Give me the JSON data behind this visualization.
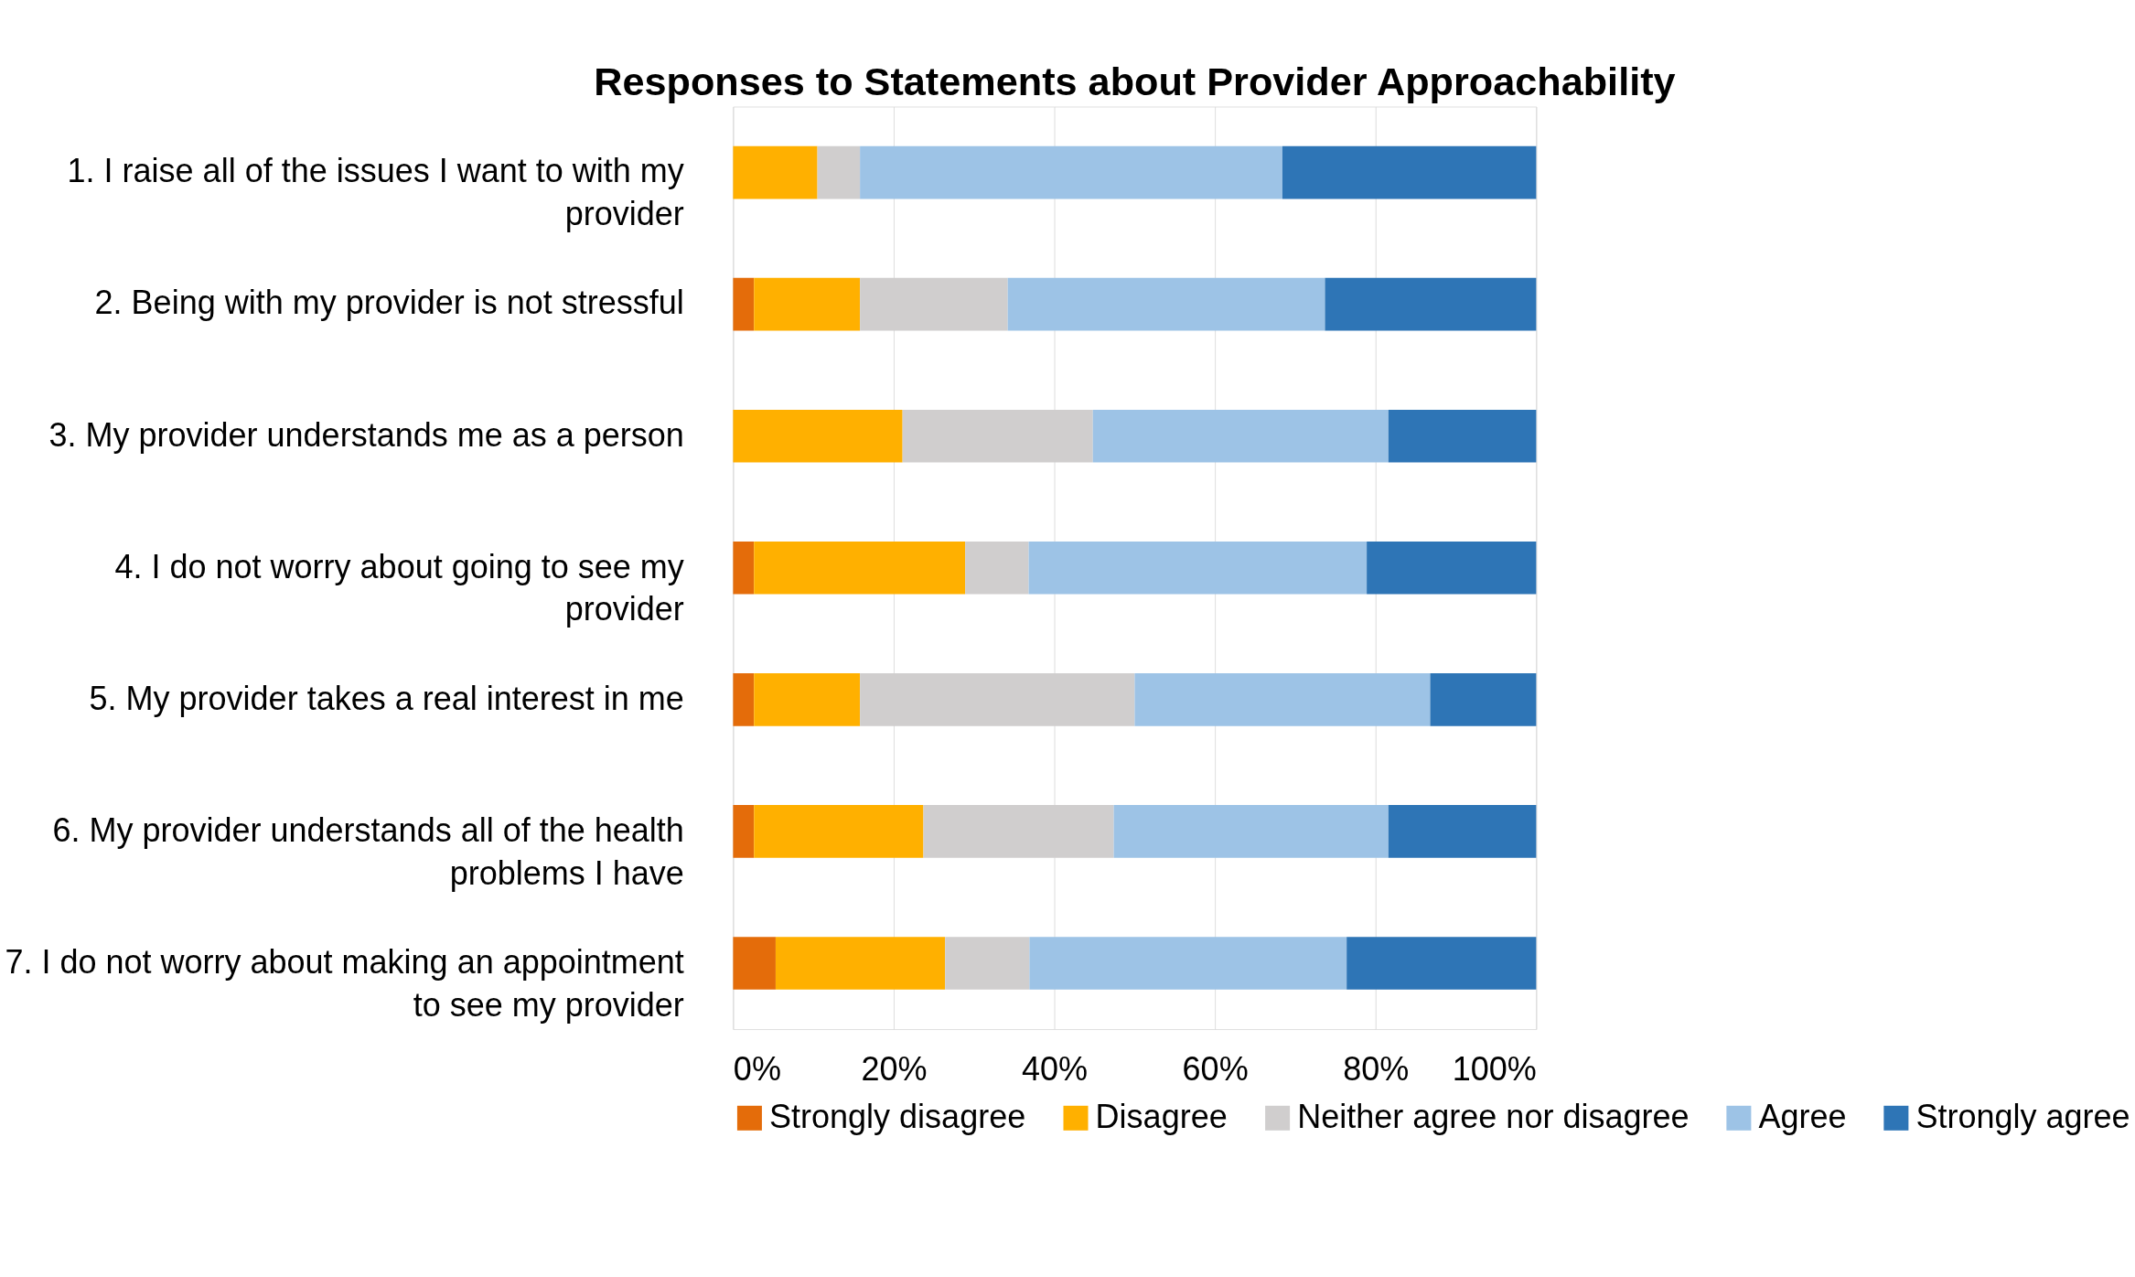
{
  "chart_data": {
    "type": "bar",
    "orientation": "horizontal",
    "stacked": true,
    "title": "Responses to Statements about Provider Approachability",
    "categories": [
      "1. I raise all of the issues I want to with my provider",
      "2. Being with my provider is not stressful",
      "3. My provider understands me as a person",
      "4. I do not worry about going to see my provider",
      "5. My provider takes a real interest in me",
      "6. My provider understands all of the health problems I have",
      "7. I do not worry about making an appointment to see my provider"
    ],
    "series": [
      {
        "name": "Strongly disagree",
        "color": "#e46c0a",
        "values": [
          0,
          2.6,
          0,
          2.6,
          2.6,
          2.6,
          5.3
        ]
      },
      {
        "name": "Disagree",
        "color": "#ffb000",
        "values": [
          10.5,
          13.2,
          21.1,
          26.3,
          13.2,
          21.1,
          21.1
        ]
      },
      {
        "name": "Neither agree nor disagree",
        "color": "#d0cece",
        "values": [
          5.3,
          18.4,
          23.7,
          7.9,
          34.2,
          23.7,
          10.5
        ]
      },
      {
        "name": "Agree",
        "color": "#9dc3e6",
        "values": [
          52.6,
          39.5,
          36.8,
          42.1,
          36.8,
          34.2,
          39.5
        ]
      },
      {
        "name": "Strongly agree",
        "color": "#2e75b6",
        "values": [
          31.6,
          26.3,
          18.4,
          21.1,
          13.2,
          18.4,
          23.6
        ]
      }
    ],
    "xlim": [
      0,
      100
    ],
    "xticks": [
      {
        "value": 0,
        "label": "0%"
      },
      {
        "value": 20,
        "label": "20%"
      },
      {
        "value": 40,
        "label": "40%"
      },
      {
        "value": 60,
        "label": "60%"
      },
      {
        "value": 80,
        "label": "80%"
      },
      {
        "value": 100,
        "label": "100%"
      }
    ],
    "grid": "x",
    "legend": "bottom"
  }
}
